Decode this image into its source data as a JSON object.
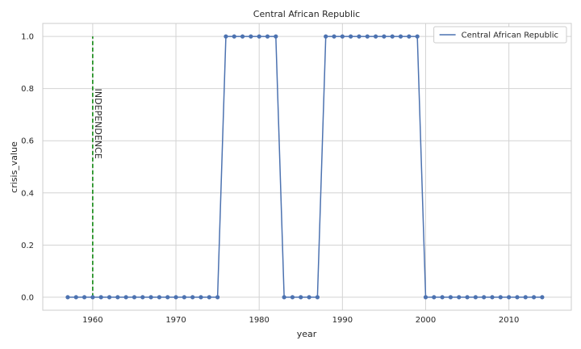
{
  "chart_data": {
    "type": "line",
    "title": "Central African Republic",
    "xlabel": "year",
    "ylabel": "crisis_value",
    "xlim": [
      1954,
      2017.5
    ],
    "ylim": [
      -0.05,
      1.05
    ],
    "x_ticks": [
      1960,
      1970,
      1980,
      1990,
      2000,
      2010
    ],
    "y_ticks": [
      0.0,
      0.2,
      0.4,
      0.6,
      0.8,
      1.0
    ],
    "grid": true,
    "legend_position": "top-right",
    "series": [
      {
        "name": "Central African Republic",
        "color": "#4c72b0",
        "marker": "circle",
        "x": [
          1957,
          1958,
          1959,
          1960,
          1961,
          1962,
          1963,
          1964,
          1965,
          1966,
          1967,
          1968,
          1969,
          1970,
          1971,
          1972,
          1973,
          1974,
          1975,
          1976,
          1977,
          1978,
          1979,
          1980,
          1981,
          1982,
          1983,
          1984,
          1985,
          1986,
          1987,
          1988,
          1989,
          1990,
          1991,
          1992,
          1993,
          1994,
          1995,
          1996,
          1997,
          1998,
          1999,
          2000,
          2001,
          2002,
          2003,
          2004,
          2005,
          2006,
          2007,
          2008,
          2009,
          2010,
          2011,
          2012,
          2013,
          2014
        ],
        "values": [
          0,
          0,
          0,
          0,
          0,
          0,
          0,
          0,
          0,
          0,
          0,
          0,
          0,
          0,
          0,
          0,
          0,
          0,
          0,
          1,
          1,
          1,
          1,
          1,
          1,
          1,
          0,
          0,
          0,
          0,
          0,
          1,
          1,
          1,
          1,
          1,
          1,
          1,
          1,
          1,
          1,
          1,
          1,
          0,
          0,
          0,
          0,
          0,
          0,
          0,
          0,
          0,
          0,
          0,
          0,
          0,
          0,
          0
        ]
      }
    ],
    "annotations": [
      {
        "text": "INDEPENDENCE",
        "x": 1960,
        "y_start": 0.0,
        "y_end": 1.0,
        "line_style": "dashed",
        "color": "#008000",
        "text_y": 0.8,
        "text_rotation": -90
      }
    ]
  }
}
